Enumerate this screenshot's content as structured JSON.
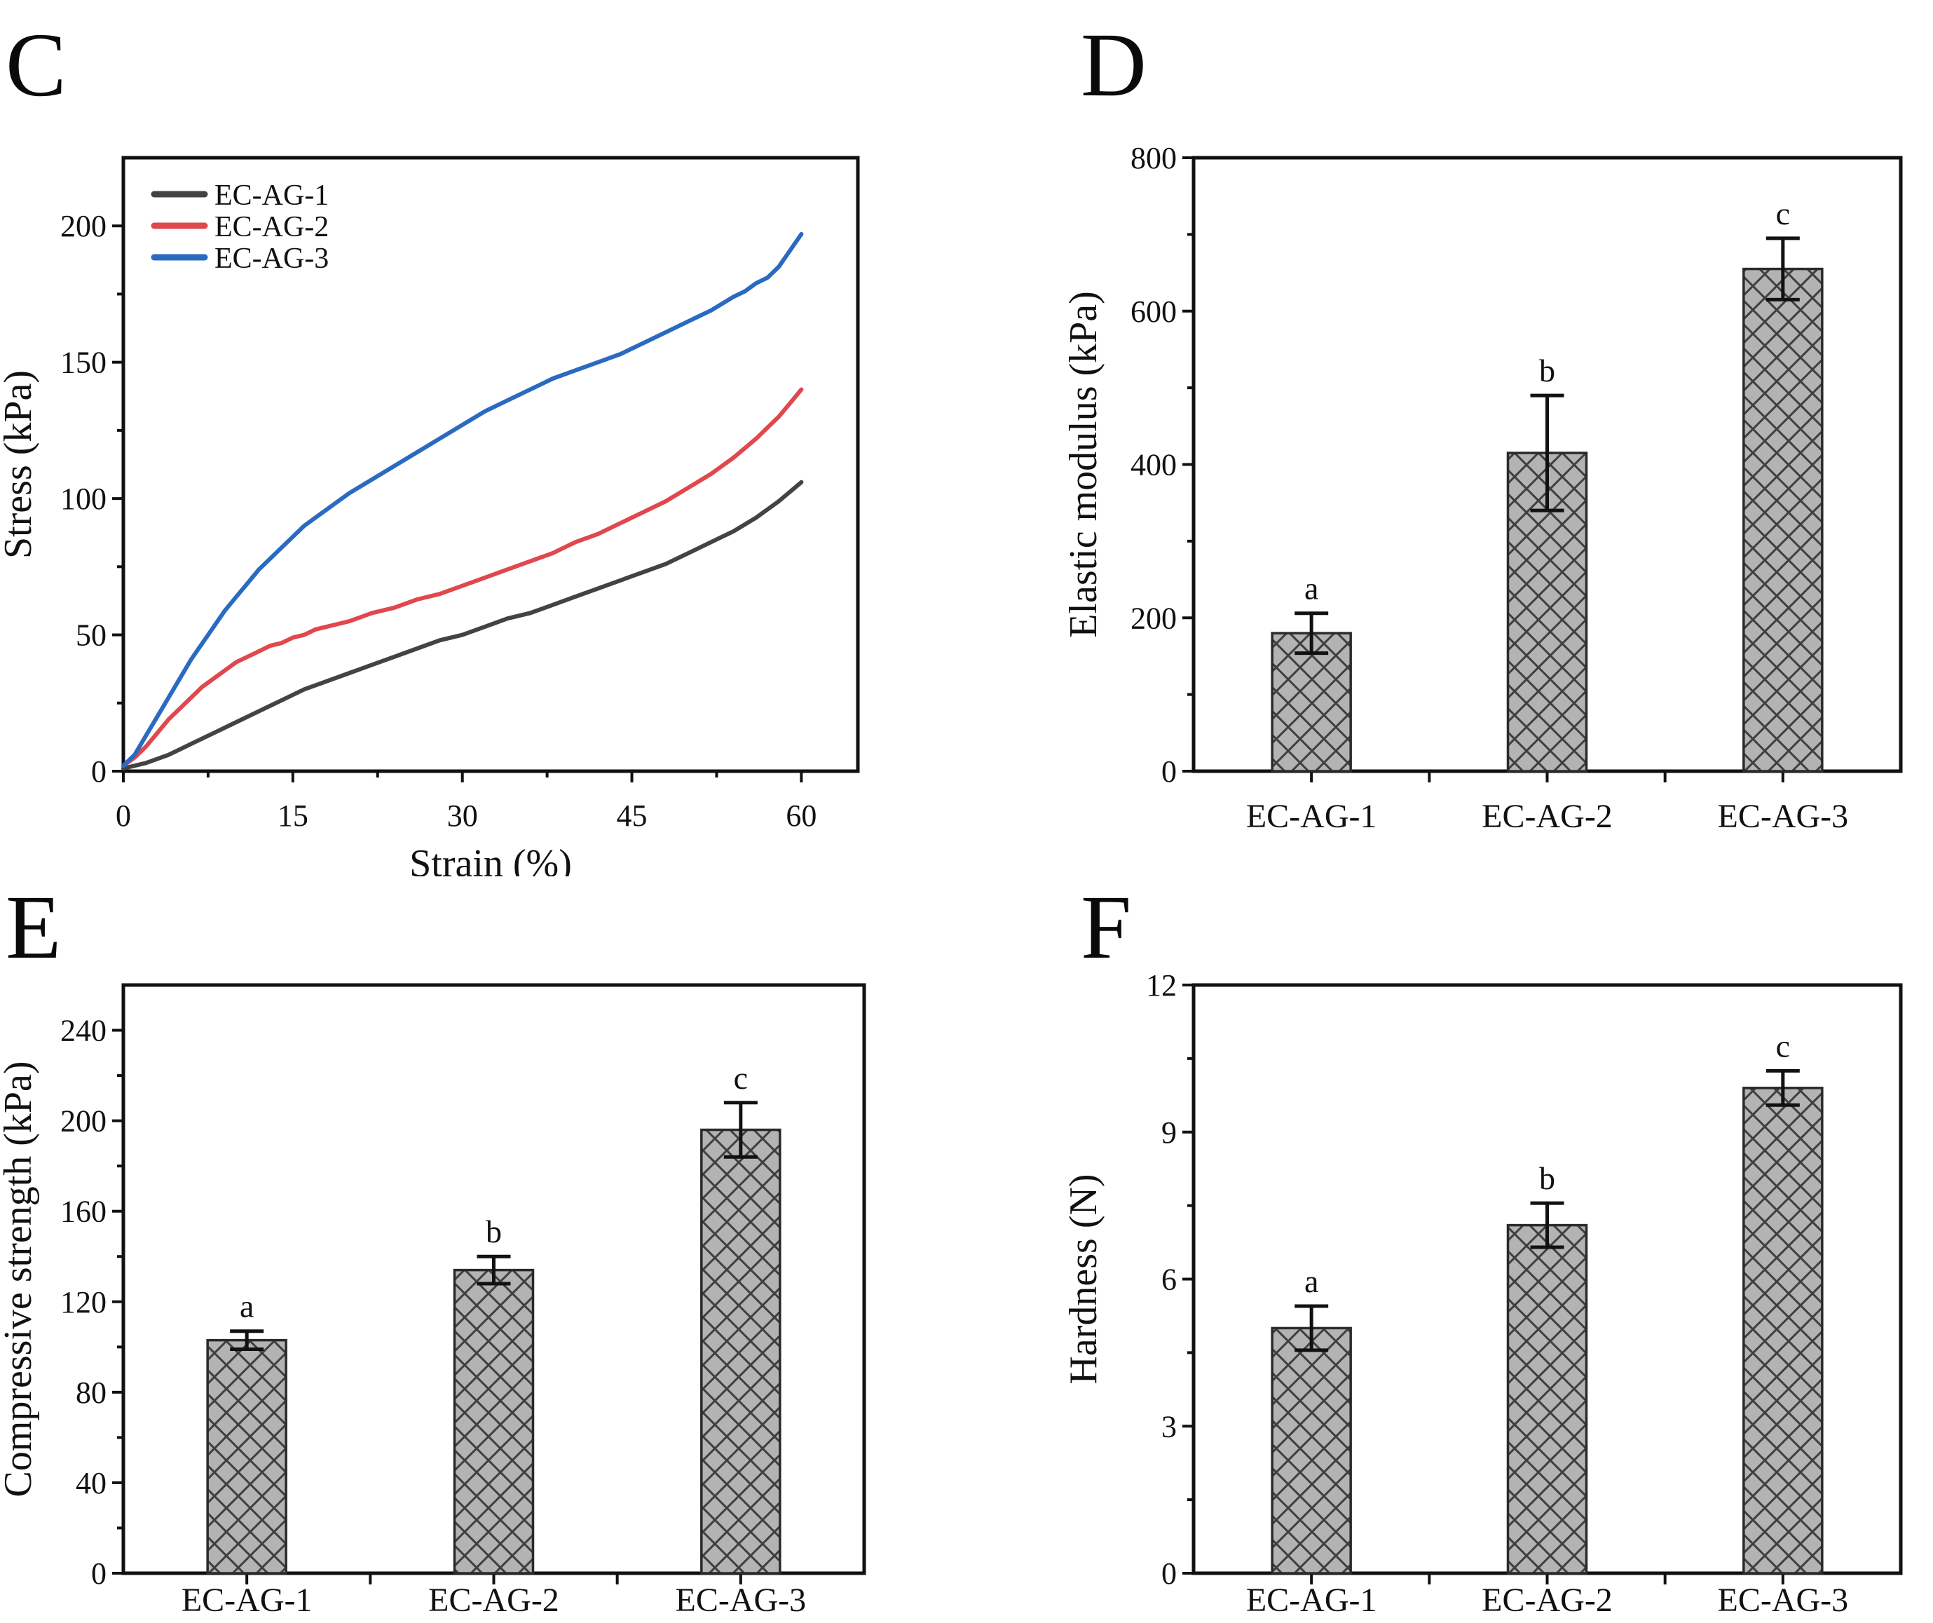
{
  "figure": {
    "panels": [
      {
        "letter": "C"
      },
      {
        "letter": "D"
      },
      {
        "letter": "E"
      },
      {
        "letter": "F"
      }
    ]
  },
  "style": {
    "axis_color": "#111111",
    "bar_fill": "#b3b3b3",
    "bar_hatch_line": "#3f3f3f",
    "bar_edge": "#2a2a2a",
    "error_bar_color": "#111111",
    "series_gray": "#434343",
    "series_red": "#e0484d",
    "series_blue": "#2a6ac1"
  },
  "chart_data": [
    {
      "panel": "C",
      "type": "line",
      "title": "",
      "xlabel": "Strain (%)",
      "ylabel": "Stress (kPa)",
      "xlim": [
        0,
        65
      ],
      "ylim": [
        0,
        225
      ],
      "xticks": [
        0,
        15,
        30,
        45,
        60
      ],
      "yticks": [
        0,
        50,
        100,
        150,
        200
      ],
      "x_minor_step": 7.5,
      "y_minor_step": 25,
      "grid": false,
      "legend_position": "top-left",
      "series": [
        {
          "name": "EC-AG-1",
          "color": "#434343",
          "x": [
            0,
            2,
            4,
            6,
            8,
            10,
            12,
            14,
            16,
            18,
            20,
            22,
            24,
            26,
            28,
            30,
            32,
            34,
            36,
            38,
            40,
            42,
            44,
            46,
            48,
            50,
            52,
            54,
            56,
            58,
            60
          ],
          "y": [
            1,
            3,
            6,
            10,
            14,
            18,
            22,
            26,
            30,
            33,
            36,
            39,
            42,
            45,
            48,
            50,
            53,
            56,
            58,
            61,
            64,
            67,
            70,
            73,
            76,
            80,
            84,
            88,
            93,
            99,
            106
          ]
        },
        {
          "name": "EC-AG-2",
          "color": "#e0484d",
          "x": [
            0,
            1,
            2,
            3,
            4,
            5,
            6,
            7,
            8,
            9,
            10,
            11,
            12,
            13,
            14,
            15,
            16,
            17,
            18,
            19,
            20,
            22,
            24,
            26,
            28,
            30,
            32,
            34,
            36,
            38,
            40,
            42,
            44,
            46,
            48,
            50,
            52,
            54,
            56,
            58,
            59,
            60
          ],
          "y": [
            2,
            5,
            9,
            14,
            19,
            23,
            27,
            31,
            34,
            37,
            40,
            42,
            44,
            46,
            47,
            49,
            50,
            52,
            53,
            54,
            55,
            58,
            60,
            63,
            65,
            68,
            71,
            74,
            77,
            80,
            84,
            87,
            91,
            95,
            99,
            104,
            109,
            115,
            122,
            130,
            135,
            140
          ]
        },
        {
          "name": "EC-AG-3",
          "color": "#2a6ac1",
          "x": [
            0,
            1,
            2,
            3,
            4,
            5,
            6,
            7,
            8,
            9,
            10,
            11,
            12,
            13,
            14,
            15,
            16,
            17,
            18,
            19,
            20,
            22,
            24,
            26,
            28,
            30,
            32,
            34,
            36,
            37,
            38,
            40,
            42,
            44,
            46,
            48,
            50,
            52,
            54,
            55,
            56,
            57,
            58,
            59,
            60
          ],
          "y": [
            2,
            6,
            13,
            20,
            27,
            34,
            41,
            47,
            53,
            59,
            64,
            69,
            74,
            78,
            82,
            86,
            90,
            93,
            96,
            99,
            102,
            107,
            112,
            117,
            122,
            127,
            132,
            136,
            140,
            142,
            144,
            147,
            150,
            153,
            157,
            161,
            165,
            169,
            174,
            176,
            179,
            181,
            185,
            191,
            197
          ]
        }
      ]
    },
    {
      "panel": "D",
      "type": "bar",
      "title": "",
      "xlabel": "",
      "ylabel": "Elastic modulus (kPa)",
      "categories": [
        "EC-AG-1",
        "EC-AG-2",
        "EC-AG-3"
      ],
      "values": [
        180,
        415,
        655
      ],
      "errors": [
        26,
        75,
        40
      ],
      "sig_letters": [
        "a",
        "b",
        "c"
      ],
      "ylim": [
        0,
        800
      ],
      "yticks": [
        0,
        200,
        400,
        600,
        800
      ],
      "y_minor_step": 100,
      "grid": false
    },
    {
      "panel": "E",
      "type": "bar",
      "title": "",
      "xlabel": "",
      "ylabel": "Compressive strength (kPa)",
      "categories": [
        "EC-AG-1",
        "EC-AG-2",
        "EC-AG-3"
      ],
      "values": [
        103,
        134,
        196
      ],
      "errors": [
        4,
        6,
        12
      ],
      "sig_letters": [
        "a",
        "b",
        "c"
      ],
      "ylim": [
        0,
        260
      ],
      "yticks": [
        0,
        40,
        80,
        120,
        160,
        200,
        240
      ],
      "y_minor_step": 20,
      "grid": false
    },
    {
      "panel": "F",
      "type": "bar",
      "title": "",
      "xlabel": "",
      "ylabel": "Hardness (N)",
      "categories": [
        "EC-AG-1",
        "EC-AG-2",
        "EC-AG-3"
      ],
      "values": [
        5,
        7.1,
        9.9
      ],
      "errors": [
        0.45,
        0.45,
        0.35
      ],
      "sig_letters": [
        "a",
        "b",
        "c"
      ],
      "ylim": [
        0,
        12
      ],
      "yticks": [
        0,
        3,
        6,
        9,
        12
      ],
      "y_minor_step": 1.5,
      "grid": false
    }
  ]
}
